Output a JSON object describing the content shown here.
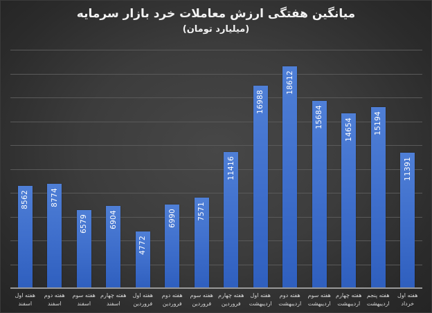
{
  "chart": {
    "title": "میانگین هفتگی ارزش معاملات خرد بازار سرمایه",
    "subtitle": "(میلیارد تومان)",
    "colors": {
      "bar": "#4472c4",
      "background": "#3c3c3c",
      "text": "#f2f2f2",
      "gridline": "#5a5a5a"
    }
  },
  "chart_data": {
    "type": "bar",
    "title": "میانگین هفتگی ارزش معاملات خرد بازار سرمایه",
    "subtitle": "(میلیارد تومان)",
    "xlabel": "",
    "ylabel": "",
    "ylim": [
      0,
      20000
    ],
    "grid": true,
    "gridline_step": 2000,
    "y_axis_labels_visible": false,
    "legend": null,
    "data_labels": "inside-top-rotated",
    "categories": [
      "هفته اول اسفند",
      "هفته دوم اسفند",
      "هفته سوم اسفند",
      "هفته چهارم اسفند",
      "هفته اول فروردین",
      "هفته دوم فروردین",
      "هفته سوم فروردین",
      "هفته چهارم فروردین",
      "هفته اول اردیبهشت",
      "هفته دوم اردیبهشت",
      "هفته سوم اردیبهشت",
      "هفته چهارم اردیبهشت",
      "هفته پنجم اردیبهشت",
      "هفته اول خرداد"
    ],
    "values": [
      8562,
      8774,
      6579,
      6904,
      4772,
      6990,
      7571,
      11416,
      16988,
      18612,
      15684,
      14654,
      15194,
      11391
    ]
  },
  "bars": [
    {
      "week": "هفته اول",
      "month": "اسفند",
      "value": "8562"
    },
    {
      "week": "هفته دوم",
      "month": "اسفند",
      "value": "8774"
    },
    {
      "week": "هفته سوم",
      "month": "اسفند",
      "value": "6579"
    },
    {
      "week": "هفته چهارم",
      "month": "اسفند",
      "value": "6904"
    },
    {
      "week": "هفته اول",
      "month": "فروردین",
      "value": "4772"
    },
    {
      "week": "هفته دوم",
      "month": "فروردین",
      "value": "6990"
    },
    {
      "week": "هفته سوم",
      "month": "فروردین",
      "value": "7571"
    },
    {
      "week": "هفته چهارم",
      "month": "فروردین",
      "value": "11416"
    },
    {
      "week": "هفته اول",
      "month": "اردیبهشت",
      "value": "16988"
    },
    {
      "week": "هفته دوم",
      "month": "اردیبهشت",
      "value": "18612"
    },
    {
      "week": "هفته سوم",
      "month": "اردیبهشت",
      "value": "15684"
    },
    {
      "week": "هفته چهارم",
      "month": "اردیبهشت",
      "value": "14654"
    },
    {
      "week": "هفته پنجم",
      "month": "اردیبهشت",
      "value": "15194"
    },
    {
      "week": "هفته اول",
      "month": "خرداد",
      "value": "11391"
    }
  ]
}
